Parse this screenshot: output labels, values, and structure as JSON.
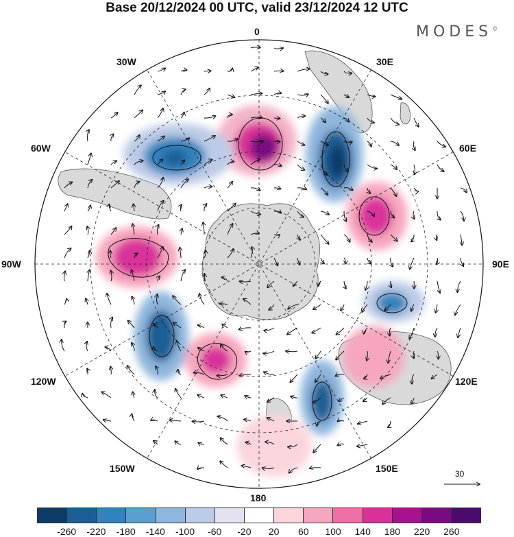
{
  "title": "Base 20/12/2024 00 UTC, valid 23/12/2024 12 UTC",
  "brand": "MODES",
  "brand_mark": "©",
  "longitude_labels": {
    "lon_0": "0",
    "lon_30e": "30E",
    "lon_60e": "60E",
    "lon_90e": "90E",
    "lon_120e": "120E",
    "lon_150e": "150E",
    "lon_180": "180",
    "lon_150w": "150W",
    "lon_120w": "120W",
    "lon_90w": "90W",
    "lon_60w": "60W",
    "lon_30w": "30W"
  },
  "vector_scale_label": "30",
  "colorbar": {
    "colors": [
      "#0d3b66",
      "#1b5e94",
      "#3182bd",
      "#5a9fd0",
      "#8fb6dd",
      "#bccbe6",
      "#e2e2f0",
      "#ffffff",
      "#fbd5dc",
      "#f6a7bd",
      "#ee6fa6",
      "#d9309a",
      "#a8128e",
      "#7a0a82",
      "#4a0a6e"
    ],
    "tick_labels": [
      "-260",
      "-220",
      "-180",
      "-140",
      "-100",
      "-60",
      "-20",
      "20",
      "60",
      "100",
      "140",
      "180",
      "220",
      "260"
    ]
  },
  "land_color": "#d9d9d9"
}
